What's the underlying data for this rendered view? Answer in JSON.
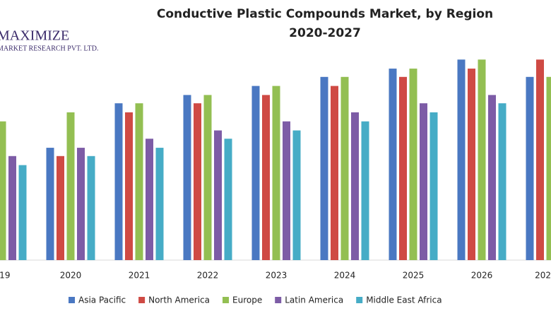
{
  "logo": {
    "name": "MAXIMIZE",
    "subtitle": "MARKET RESEARCH PVT. LTD."
  },
  "chart_data": {
    "type": "bar",
    "title": "Conductive Plastic Compounds Market, by Region",
    "subtitle": "2020-2027",
    "categories": [
      "019",
      "2020",
      "2021",
      "2022",
      "2023",
      "2024",
      "2025",
      "2026",
      "202"
    ],
    "ylim": [
      0,
      27
    ],
    "series": [
      {
        "name": "Asia Pacific",
        "color": "#4a78c2",
        "values": [
          null,
          14.9,
          20.8,
          21.9,
          23.1,
          24.3,
          25.4,
          26.6,
          24.3
        ]
      },
      {
        "name": "North America",
        "color": "#cf4a44",
        "values": [
          null,
          13.8,
          19.6,
          20.8,
          21.9,
          23.1,
          24.3,
          25.4,
          26.6
        ]
      },
      {
        "name": "Europe",
        "color": "#93bf52",
        "values": [
          18.4,
          19.6,
          20.8,
          21.9,
          23.1,
          24.3,
          25.4,
          26.6,
          24.3
        ]
      },
      {
        "name": "Latin America",
        "color": "#7d5ca6",
        "values": [
          13.8,
          14.9,
          16.1,
          17.2,
          18.4,
          19.6,
          20.8,
          21.9,
          null
        ]
      },
      {
        "name": "Middle East Africa",
        "color": "#46acc6",
        "values": [
          12.6,
          13.8,
          14.9,
          16.1,
          17.2,
          18.4,
          19.6,
          20.8,
          null
        ]
      }
    ]
  }
}
